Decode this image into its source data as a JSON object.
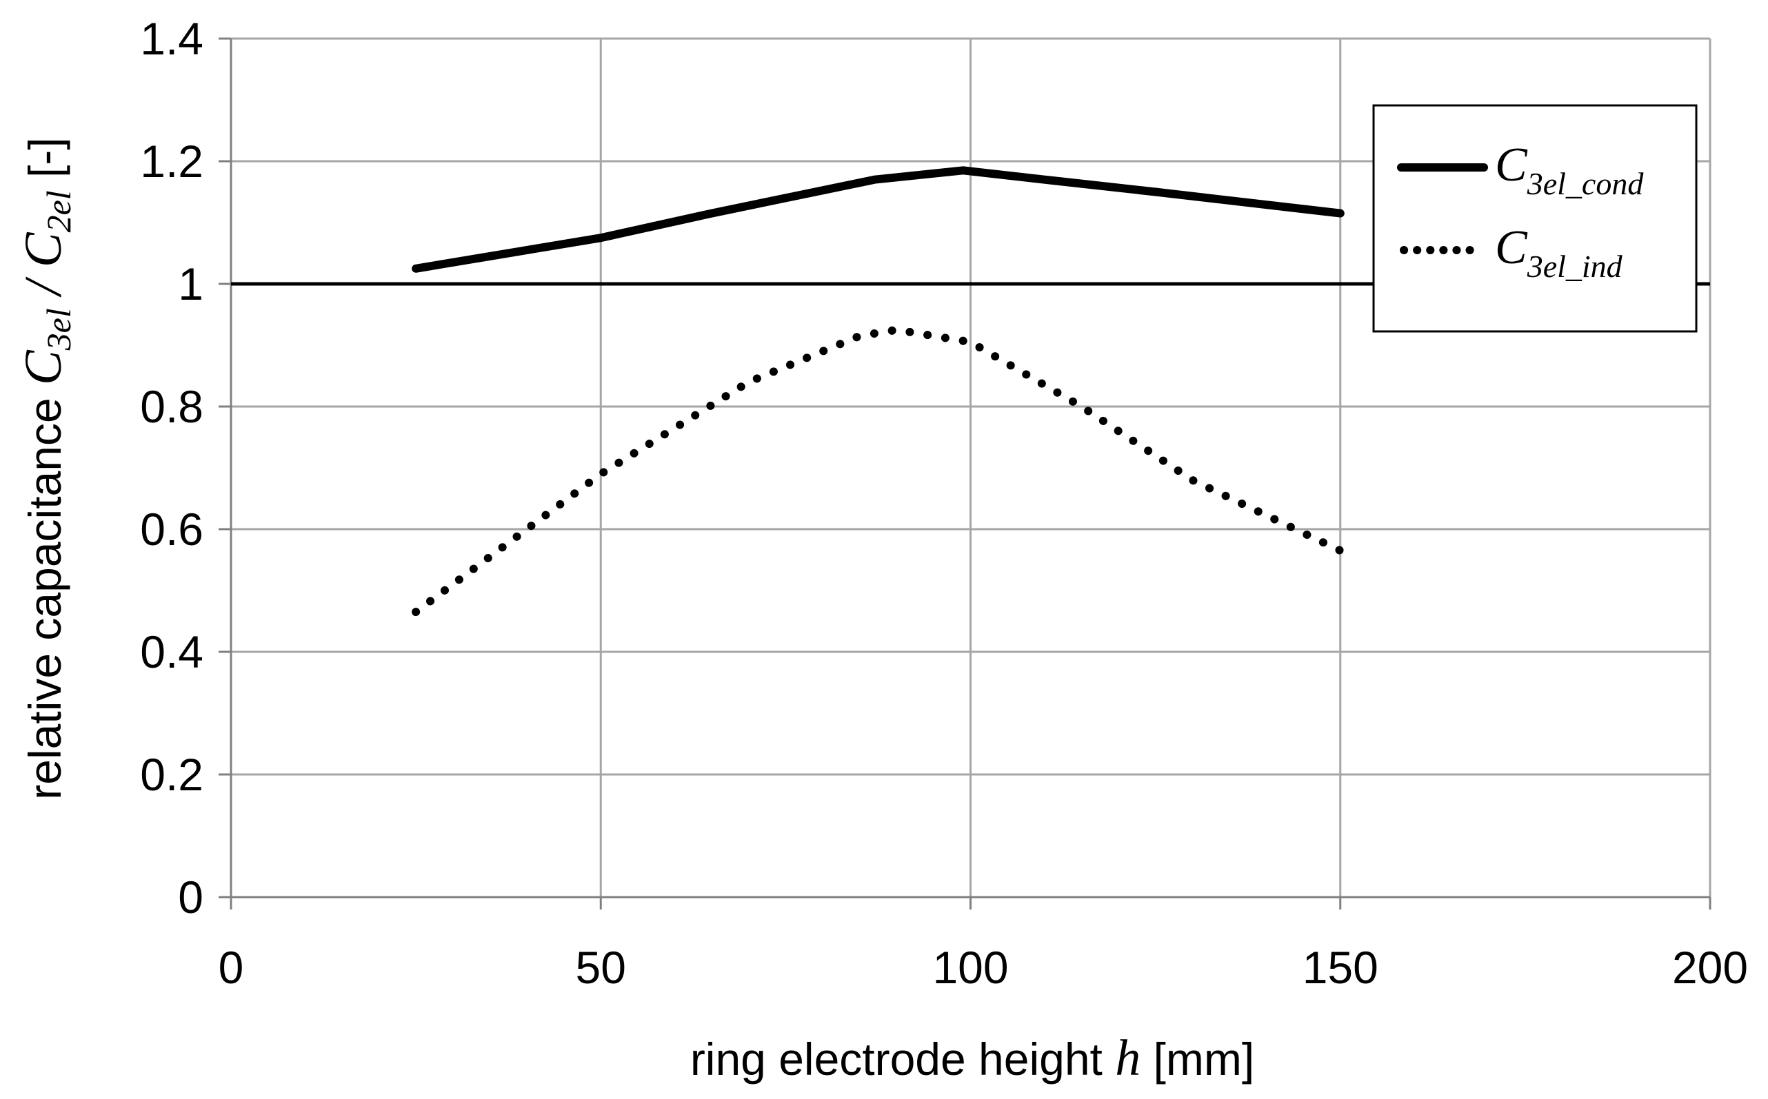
{
  "chart_data": {
    "type": "line",
    "x": [
      25,
      50,
      87,
      99,
      150
    ],
    "series": [
      {
        "name": "C_3el_cond",
        "label_main": "C",
        "label_sub": "3el_cond",
        "style": "solid",
        "x": [
          25,
          35,
          50,
          65,
          87,
          99,
          110,
          125,
          150
        ],
        "values": [
          1.025,
          1.045,
          1.075,
          1.115,
          1.17,
          1.185,
          1.17,
          1.15,
          1.115
        ]
      },
      {
        "name": "C_3el_ind",
        "label_main": "C",
        "label_sub": "3el_ind",
        "style": "dotted",
        "x": [
          25,
          50,
          70,
          85,
          90,
          100,
          115,
          130,
          150
        ],
        "values": [
          0.465,
          0.69,
          0.84,
          0.915,
          0.925,
          0.905,
          0.8,
          0.68,
          0.565
        ]
      }
    ],
    "reference_line": {
      "y": 1.0
    },
    "xlim": [
      0,
      200
    ],
    "ylim": [
      0,
      1.4
    ],
    "x_ticks": [
      0,
      50,
      100,
      150,
      200
    ],
    "x_tick_labels": [
      "0",
      "50",
      "100",
      "150",
      "200"
    ],
    "y_ticks": [
      0,
      0.2,
      0.4,
      0.6,
      0.8,
      1.0,
      1.2,
      1.4
    ],
    "y_tick_labels": [
      "0",
      "0.2",
      "0.4",
      "0.6",
      "0.8",
      "1",
      "1.2",
      "1.4"
    ],
    "grid": true,
    "legend_position": "top-right",
    "xlabel": {
      "prefix": "ring electrode height ",
      "symbol": "h",
      "suffix": " [mm]"
    },
    "ylabel": {
      "prefix": "relative capacitance ",
      "num_main": "C",
      "num_sub": "3el",
      "slash": " / ",
      "den_main": "C",
      "den_sub": "2el",
      "suffix": "  [-]"
    },
    "colors": {
      "line": "#000000",
      "grid": "#a6a6a6",
      "axis": "#808080",
      "background": "#ffffff"
    }
  }
}
